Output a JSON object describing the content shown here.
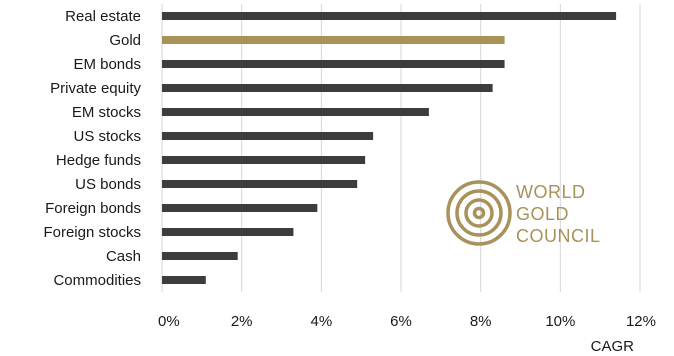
{
  "chart_data": {
    "type": "bar",
    "orientation": "horizontal",
    "categories": [
      "Real estate",
      "Gold",
      "EM bonds",
      "Private equity",
      "EM stocks",
      "US stocks",
      "Hedge funds",
      "US bonds",
      "Foreign bonds",
      "Foreign stocks",
      "Cash",
      "Commodities"
    ],
    "values": [
      11.4,
      8.6,
      8.6,
      8.3,
      6.7,
      5.3,
      5.1,
      4.9,
      3.9,
      3.3,
      1.9,
      1.1
    ],
    "highlight": "Gold",
    "xlabel": "CAGR",
    "xlim": [
      0,
      12
    ],
    "ticks": [
      0,
      2,
      4,
      6,
      8,
      10,
      12
    ],
    "tick_labels": [
      "0%",
      "2%",
      "4%",
      "6%",
      "8%",
      "10%",
      "12%"
    ],
    "grid": "vertical",
    "colors": {
      "bar": "#3d3d3d",
      "highlight": "#a8925a",
      "grid": "#d6d6d6"
    }
  },
  "logo": {
    "lines": [
      "WORLD",
      "GOLD",
      "COUNCIL"
    ],
    "color": "#a8925a"
  }
}
